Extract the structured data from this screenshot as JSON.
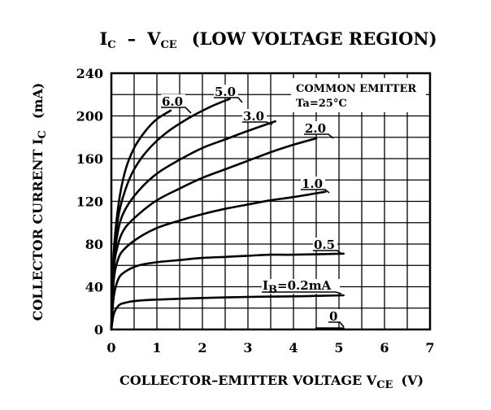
{
  "chart_data": {
    "type": "line",
    "title_main": "I",
    "title_main_sub": "C",
    "title_dash": "–",
    "title_v": "V",
    "title_v_sub": "CE",
    "title_rest": "(LOW VOLTAGE REGION)",
    "xlabel_main": "COLLECTOR–EMITTER VOLTAGE V",
    "xlabel_sub": "CE",
    "xlabel_unit": "(V)",
    "ylabel_main": "COLLECTOR CURRENT I",
    "ylabel_sub": "C",
    "ylabel_unit": "(mA)",
    "xlim": [
      0,
      7
    ],
    "ylim": [
      0,
      240
    ],
    "xticks": [
      "0",
      "1",
      "2",
      "3",
      "4",
      "5",
      "6",
      "7"
    ],
    "yticks": [
      "0",
      "40",
      "80",
      "120",
      "160",
      "200",
      "240"
    ],
    "grid": true,
    "conditions": [
      "COMMON EMITTER",
      "Ta=25°C"
    ],
    "series": [
      {
        "name": "6.0",
        "x": [
          0,
          0.05,
          0.15,
          0.3,
          0.5,
          0.75,
          1.0,
          1.3
        ],
        "y": [
          0,
          70,
          115,
          148,
          170,
          186,
          197,
          205
        ]
      },
      {
        "name": "5.0",
        "x": [
          0,
          0.05,
          0.15,
          0.3,
          0.5,
          0.8,
          1.2,
          1.7,
          2.2,
          2.6
        ],
        "y": [
          0,
          65,
          105,
          130,
          150,
          168,
          184,
          198,
          209,
          216
        ]
      },
      {
        "name": "3.0",
        "x": [
          0,
          0.05,
          0.15,
          0.3,
          0.6,
          1.0,
          1.5,
          2.0,
          2.5,
          3.0,
          3.6
        ],
        "y": [
          0,
          60,
          93,
          112,
          130,
          146,
          159,
          170,
          178,
          186,
          195
        ]
      },
      {
        "name": "2.0",
        "x": [
          0,
          0.05,
          0.15,
          0.3,
          0.6,
          1.0,
          1.5,
          2.0,
          2.5,
          3.0,
          3.5,
          4.0,
          4.5
        ],
        "y": [
          0,
          55,
          80,
          95,
          108,
          121,
          132,
          142,
          150,
          158,
          166,
          173,
          179
        ]
      },
      {
        "name": "1.0",
        "x": [
          0,
          0.05,
          0.15,
          0.3,
          0.6,
          1.0,
          1.5,
          2.0,
          2.5,
          3.0,
          3.5,
          4.0,
          4.7
        ],
        "y": [
          0,
          45,
          66,
          76,
          86,
          95,
          102,
          108,
          113,
          117,
          121,
          124,
          129
        ]
      },
      {
        "name": "0.5",
        "x": [
          0,
          0.05,
          0.15,
          0.3,
          0.6,
          1.0,
          1.5,
          2.0,
          2.5,
          3.0,
          3.5,
          4.0,
          5.1
        ],
        "y": [
          0,
          30,
          47,
          54,
          60,
          63,
          65,
          67,
          68,
          69,
          70,
          70,
          71
        ]
      },
      {
        "name": "I_B=0.2mA",
        "x": [
          0,
          0.05,
          0.15,
          0.3,
          0.6,
          1.0,
          2.0,
          3.0,
          4.0,
          5.1
        ],
        "y": [
          0,
          14,
          22,
          25,
          27,
          28,
          29.5,
          30.5,
          31,
          32
        ]
      },
      {
        "name": "0",
        "x": [
          4.5,
          5.1
        ],
        "y": [
          1,
          1
        ]
      }
    ],
    "curve_labels": [
      "6.0",
      "5.0",
      "3.0",
      "2.0",
      "1.0",
      "0.5",
      "0.2mA",
      "0"
    ],
    "ib_label_main": "I",
    "ib_label_sub": "B",
    "ib_label_rest": "=0.2mA"
  }
}
